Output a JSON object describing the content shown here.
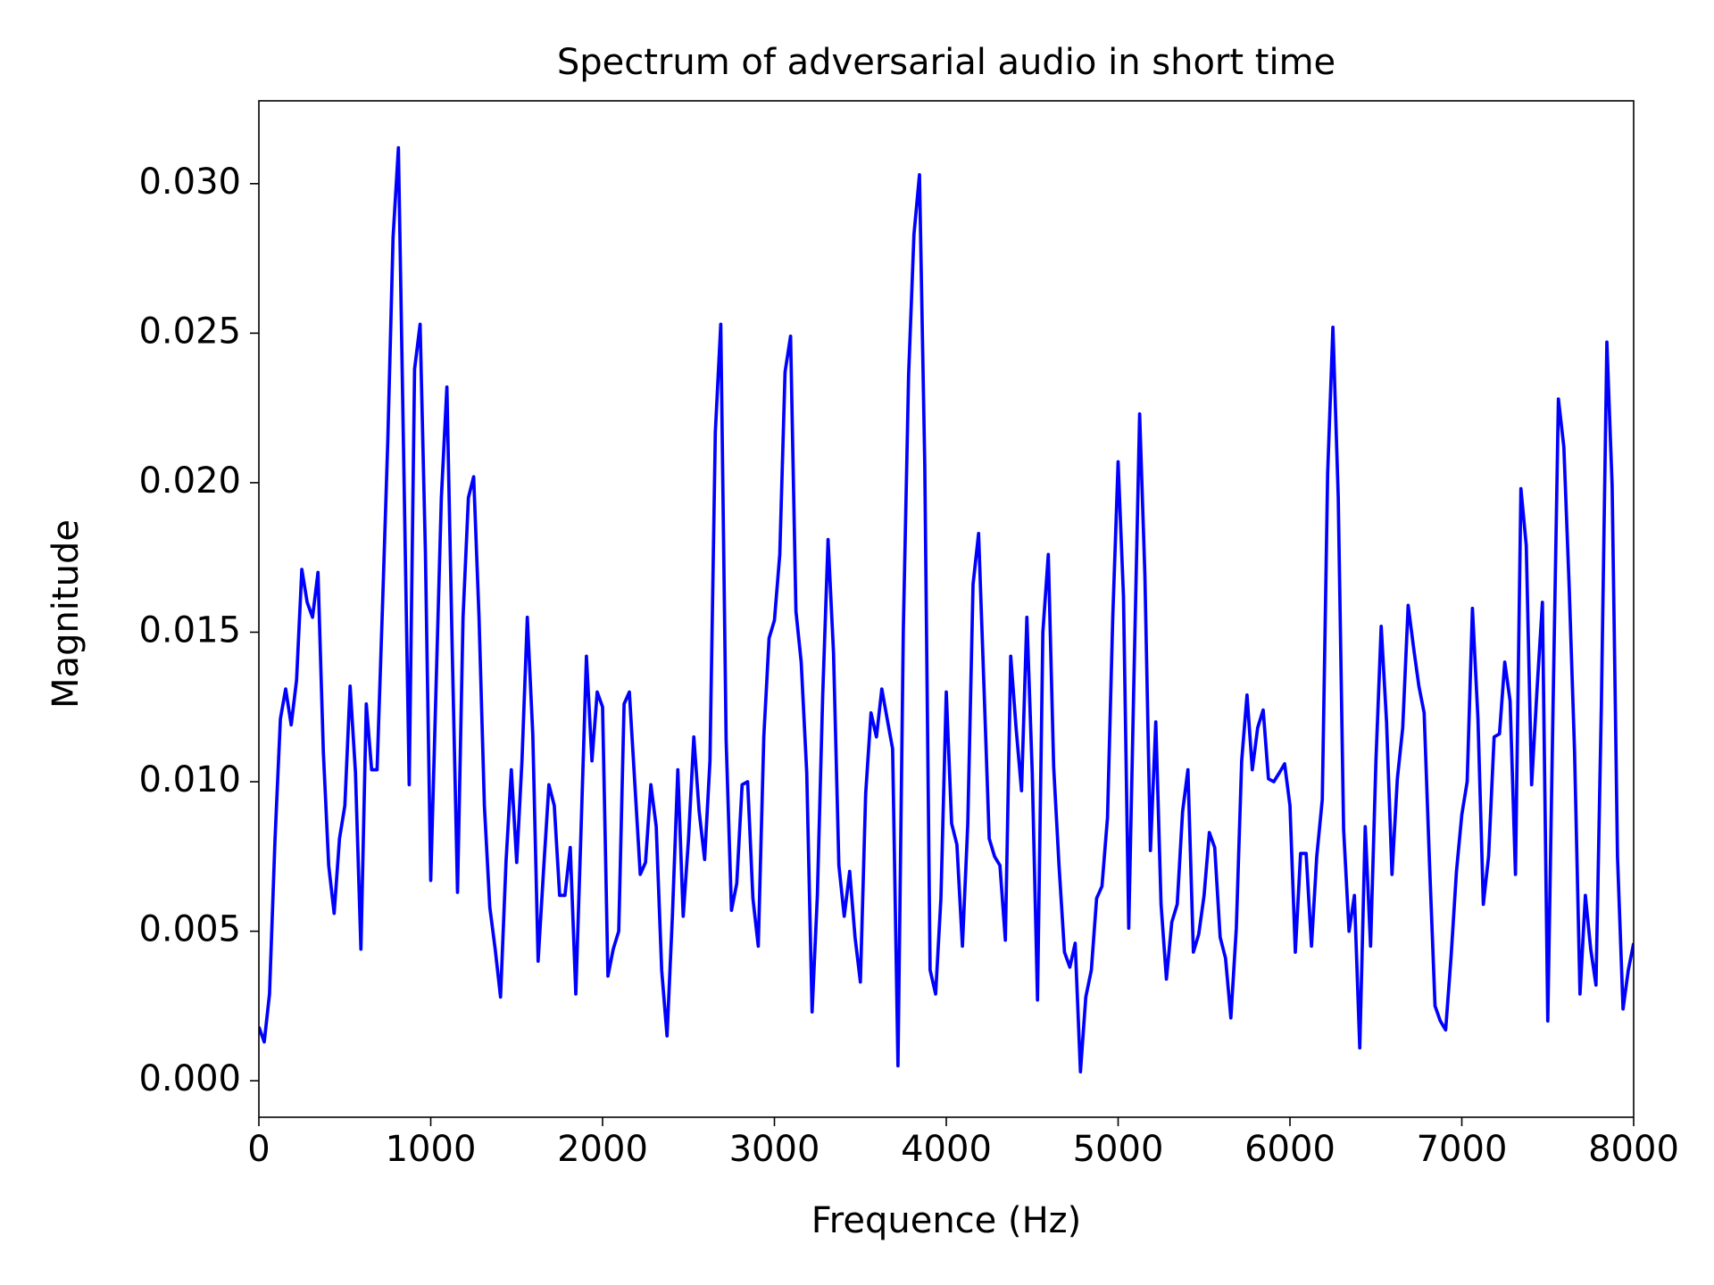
{
  "chart_data": {
    "type": "line",
    "title": "Spectrum of adversarial audio in short time",
    "x_label": "Frequence (Hz)",
    "y_label": "Magnitude",
    "color": "#0000ff",
    "xlim": [
      0,
      8000
    ],
    "ylim": [
      -0.00122,
      0.03277
    ],
    "xticks": [
      0,
      1000,
      2000,
      3000,
      4000,
      5000,
      6000,
      7000,
      8000
    ],
    "yticks": [
      {
        "value": 0,
        "label": "0.000"
      },
      {
        "value": 0.005,
        "label": "0.005"
      },
      {
        "value": 0.01,
        "label": "0.010"
      },
      {
        "value": 0.015,
        "label": "0.015"
      },
      {
        "value": 0.02,
        "label": "0.020"
      },
      {
        "value": 0.025,
        "label": "0.025"
      },
      {
        "value": 0.03,
        "label": "0.030"
      }
    ],
    "x": [
      0,
      31,
      62,
      94,
      125,
      156,
      188,
      219,
      250,
      281,
      312,
      344,
      375,
      406,
      438,
      469,
      500,
      531,
      562,
      594,
      625,
      656,
      688,
      719,
      750,
      781,
      812,
      844,
      875,
      906,
      938,
      969,
      1000,
      1031,
      1062,
      1094,
      1125,
      1156,
      1188,
      1219,
      1250,
      1281,
      1312,
      1344,
      1375,
      1406,
      1438,
      1469,
      1500,
      1531,
      1562,
      1594,
      1625,
      1656,
      1688,
      1719,
      1750,
      1781,
      1812,
      1844,
      1875,
      1906,
      1938,
      1969,
      2000,
      2031,
      2062,
      2094,
      2125,
      2156,
      2188,
      2219,
      2250,
      2281,
      2312,
      2344,
      2375,
      2406,
      2438,
      2469,
      2500,
      2531,
      2562,
      2594,
      2625,
      2656,
      2688,
      2719,
      2750,
      2781,
      2812,
      2844,
      2875,
      2906,
      2938,
      2969,
      3000,
      3031,
      3062,
      3094,
      3125,
      3156,
      3188,
      3219,
      3250,
      3281,
      3312,
      3344,
      3375,
      3406,
      3438,
      3469,
      3500,
      3531,
      3562,
      3594,
      3625,
      3656,
      3688,
      3719,
      3750,
      3781,
      3812,
      3844,
      3875,
      3906,
      3938,
      3969,
      4000,
      4031,
      4062,
      4094,
      4125,
      4156,
      4188,
      4219,
      4250,
      4281,
      4312,
      4344,
      4375,
      4406,
      4438,
      4469,
      4500,
      4531,
      4562,
      4594,
      4625,
      4656,
      4688,
      4719,
      4750,
      4781,
      4812,
      4844,
      4875,
      4906,
      4938,
      4969,
      5000,
      5031,
      5062,
      5094,
      5125,
      5156,
      5188,
      5219,
      5250,
      5281,
      5312,
      5344,
      5375,
      5406,
      5438,
      5469,
      5500,
      5531,
      5562,
      5594,
      5625,
      5656,
      5688,
      5719,
      5750,
      5781,
      5812,
      5844,
      5875,
      5906,
      5938,
      5969,
      6000,
      6031,
      6062,
      6094,
      6125,
      6156,
      6188,
      6219,
      6250,
      6281,
      6312,
      6344,
      6375,
      6406,
      6438,
      6469,
      6500,
      6531,
      6562,
      6594,
      6625,
      6656,
      6688,
      6719,
      6750,
      6781,
      6812,
      6844,
      6875,
      6906,
      6938,
      6969,
      7000,
      7031,
      7062,
      7094,
      7125,
      7156,
      7188,
      7219,
      7250,
      7281,
      7312,
      7344,
      7375,
      7406,
      7438,
      7469,
      7500,
      7531,
      7562,
      7594,
      7625,
      7656,
      7688,
      7719,
      7750,
      7781,
      7812,
      7844,
      7875,
      7906,
      7938,
      7969,
      8000
    ],
    "values": [
      0.0018,
      0.0013,
      0.0029,
      0.0081,
      0.0121,
      0.0131,
      0.0119,
      0.0134,
      0.0171,
      0.016,
      0.0155,
      0.017,
      0.011,
      0.0072,
      0.0056,
      0.0081,
      0.0092,
      0.0132,
      0.0103,
      0.0044,
      0.0126,
      0.0104,
      0.0104,
      0.0158,
      0.0214,
      0.0282,
      0.0312,
      0.0203,
      0.0099,
      0.0238,
      0.0253,
      0.0177,
      0.0067,
      0.0132,
      0.0195,
      0.0232,
      0.0144,
      0.0063,
      0.0155,
      0.0195,
      0.0202,
      0.0155,
      0.0092,
      0.0058,
      0.0044,
      0.0028,
      0.0073,
      0.0104,
      0.0073,
      0.0107,
      0.0155,
      0.0116,
      0.004,
      0.007,
      0.0099,
      0.0092,
      0.0062,
      0.0062,
      0.0078,
      0.0029,
      0.0084,
      0.0142,
      0.0107,
      0.013,
      0.0125,
      0.0035,
      0.0044,
      0.005,
      0.0126,
      0.013,
      0.0099,
      0.0069,
      0.0073,
      0.0099,
      0.0085,
      0.0037,
      0.0015,
      0.0055,
      0.0104,
      0.0055,
      0.0081,
      0.0115,
      0.009,
      0.0074,
      0.0107,
      0.0217,
      0.0253,
      0.0114,
      0.0057,
      0.0066,
      0.0099,
      0.01,
      0.0061,
      0.0045,
      0.0115,
      0.0148,
      0.0154,
      0.0176,
      0.0237,
      0.0249,
      0.0157,
      0.014,
      0.0103,
      0.0023,
      0.0062,
      0.0129,
      0.0181,
      0.0143,
      0.0072,
      0.0055,
      0.007,
      0.0048,
      0.0033,
      0.0096,
      0.0123,
      0.0115,
      0.0131,
      0.0121,
      0.0111,
      0.0005,
      0.0151,
      0.0236,
      0.0283,
      0.0303,
      0.0206,
      0.0037,
      0.0029,
      0.0061,
      0.013,
      0.0086,
      0.0079,
      0.0045,
      0.0086,
      0.0166,
      0.0183,
      0.0132,
      0.0081,
      0.0075,
      0.0072,
      0.0047,
      0.0142,
      0.0118,
      0.0097,
      0.0155,
      0.0103,
      0.0027,
      0.015,
      0.0176,
      0.0105,
      0.0072,
      0.0043,
      0.0038,
      0.0046,
      0.0003,
      0.0028,
      0.0037,
      0.0061,
      0.0065,
      0.0088,
      0.0155,
      0.0207,
      0.0162,
      0.0051,
      0.014,
      0.0223,
      0.0169,
      0.0077,
      0.012,
      0.0059,
      0.0034,
      0.0053,
      0.0059,
      0.009,
      0.0104,
      0.0043,
      0.0049,
      0.0062,
      0.0083,
      0.0078,
      0.0048,
      0.0041,
      0.0021,
      0.0051,
      0.0107,
      0.0129,
      0.0104,
      0.0118,
      0.0124,
      0.0101,
      0.01,
      0.0103,
      0.0106,
      0.0092,
      0.0043,
      0.0076,
      0.0076,
      0.0045,
      0.0075,
      0.0094,
      0.0203,
      0.0252,
      0.0195,
      0.0084,
      0.005,
      0.0062,
      0.0011,
      0.0085,
      0.0045,
      0.0107,
      0.0152,
      0.012,
      0.0069,
      0.0101,
      0.0118,
      0.0159,
      0.0145,
      0.0132,
      0.0123,
      0.0073,
      0.0025,
      0.002,
      0.0017,
      0.0042,
      0.007,
      0.0089,
      0.01,
      0.0158,
      0.0121,
      0.0059,
      0.0075,
      0.0115,
      0.0116,
      0.014,
      0.0127,
      0.0069,
      0.0198,
      0.0179,
      0.0099,
      0.0131,
      0.016,
      0.002,
      0.0125,
      0.0228,
      0.0212,
      0.0165,
      0.011,
      0.0029,
      0.0062,
      0.0044,
      0.0032,
      0.0125,
      0.0247,
      0.0199,
      0.0075,
      0.0024,
      0.0037,
      0.0046
    ]
  }
}
